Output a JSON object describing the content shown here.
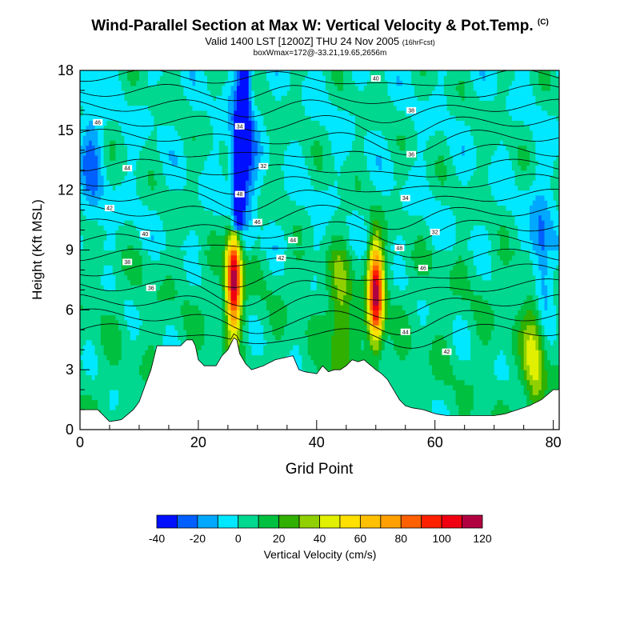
{
  "header": {
    "title": "Wind-Parallel Section at Max W: Vertical Velocity & Pot.Temp.",
    "title_mark": "(C)",
    "subtitle": "Valid 1400 LST [1200Z] THU 24 Nov 2005",
    "subtitle_note": "(16hrFcst)",
    "info": "boxWmax=172@-33.21,19.65,2656m"
  },
  "chart_data": {
    "type": "heatmap",
    "title": "Wind-Parallel Section at Max W: Vertical Velocity & Pot.Temp.",
    "xlabel": "Grid Point",
    "ylabel": "Height (Kft MSL)",
    "xlim": [
      0,
      81
    ],
    "ylim": [
      0,
      18
    ],
    "x_ticks": [
      0,
      20,
      40,
      60,
      80
    ],
    "x_tick_labels": [
      "0",
      "20",
      "40",
      "60",
      "80"
    ],
    "y_ticks": [
      0,
      3,
      6,
      9,
      12,
      15,
      18
    ],
    "y_tick_labels": [
      "0",
      "3",
      "6",
      "9",
      "12",
      "15",
      "18"
    ],
    "colorbar": {
      "label": "Vertical Velocity (cm/s)",
      "levels": [
        -40,
        -30,
        -20,
        -10,
        0,
        10,
        20,
        30,
        40,
        50,
        60,
        70,
        80,
        90,
        100,
        110,
        120
      ],
      "tick_labels": [
        "-40",
        "-20",
        "0",
        "20",
        "40",
        "60",
        "80",
        "100",
        "120"
      ],
      "colors": [
        "#0010ff",
        "#0060ff",
        "#00a8ff",
        "#00e8ff",
        "#00d890",
        "#00c040",
        "#30b000",
        "#90d000",
        "#e0f000",
        "#ffe000",
        "#ffc000",
        "#ffa000",
        "#ff6000",
        "#ff2000",
        "#f00010",
        "#b00040"
      ]
    },
    "terrain": {
      "x": [
        0,
        3,
        5,
        7,
        9,
        10,
        11,
        12,
        13,
        17,
        18,
        19,
        19.5,
        20,
        21,
        23,
        24,
        25,
        26,
        26.5,
        27,
        28,
        29,
        31,
        33,
        36,
        37,
        38,
        40,
        41,
        42,
        43,
        44,
        45,
        46,
        47,
        48,
        50,
        51,
        52,
        53,
        54,
        55,
        56,
        58,
        60,
        62,
        70,
        72,
        74,
        76,
        78,
        80,
        81
      ],
      "height": [
        1.0,
        1.0,
        0.4,
        0.5,
        1.0,
        1.4,
        2.2,
        3.0,
        4.2,
        4.2,
        4.5,
        4.5,
        4.2,
        3.5,
        3.2,
        3.2,
        3.7,
        4.0,
        4.6,
        4.5,
        3.8,
        3.3,
        3.0,
        3.2,
        3.5,
        3.7,
        3.0,
        2.9,
        2.8,
        3.2,
        2.9,
        3.0,
        3.0,
        3.2,
        3.5,
        3.4,
        3.5,
        3.0,
        2.8,
        2.5,
        2.0,
        1.5,
        1.2,
        1.1,
        1.0,
        0.8,
        0.7,
        0.7,
        0.8,
        1.0,
        1.2,
        1.5,
        2.0,
        2.0
      ]
    },
    "features": [
      {
        "x": 26,
        "y": 7.5,
        "w": 115,
        "note": "updraft"
      },
      {
        "x": 50,
        "y": 6.8,
        "w": 110,
        "note": "updraft"
      },
      {
        "x": 77,
        "y": 4.2,
        "w": 45,
        "note": "updraft"
      },
      {
        "x": 44,
        "y": 5.5,
        "w": 30,
        "note": "updraft"
      },
      {
        "x": 27.5,
        "y": 14.0,
        "w": -40,
        "note": "downdraft"
      },
      {
        "x": 78,
        "y": 7.8,
        "w": -38,
        "note": "downdraft"
      },
      {
        "x": 2,
        "y": 13.5,
        "w": -20,
        "note": "downdraft"
      }
    ],
    "isentropes": {
      "units": "C",
      "label_values": [
        "48",
        "46",
        "44",
        "42",
        "40",
        "38",
        "36",
        "34",
        "32",
        "48",
        "46",
        "44",
        "42",
        "40",
        "38",
        "36",
        "34",
        "32"
      ]
    }
  }
}
